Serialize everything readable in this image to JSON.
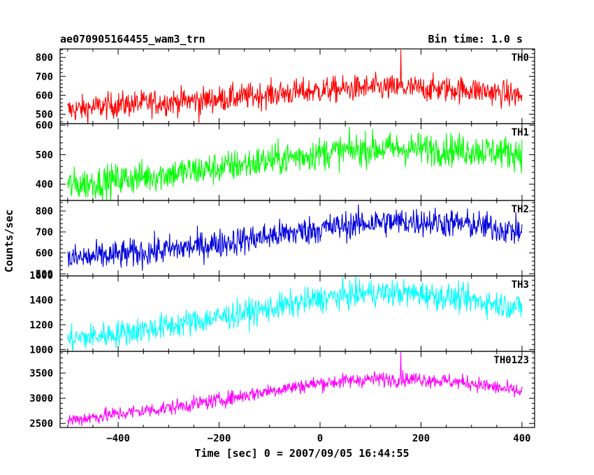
{
  "header": {
    "title": "ae070905164455_wam3_trn",
    "bin_time": "Bin time: 1.0 s"
  },
  "chart_data": {
    "type": "line",
    "title": "ae070905164455_wam3_trn",
    "subtitle": "Bin time: 1.0 s",
    "xlabel": "Time [sec] 0 = 2007/09/05 16:44:55",
    "ylabel": "Counts/sec",
    "xlim": [
      -515,
      425
    ],
    "xticks": [
      -400,
      -200,
      0,
      200,
      400
    ],
    "x_tick_labels": [
      "−400",
      "−200",
      "0",
      "200",
      "400"
    ],
    "data_x_range": [
      -500,
      400
    ],
    "bin_time": 1.0,
    "grid": false,
    "panels": [
      {
        "name": "TH0",
        "color": "#ff0000",
        "ylim": [
          450,
          845
        ],
        "yticks": [
          500,
          600,
          700,
          800
        ],
        "ytick_labels": [
          "500",
          "600",
          "700",
          "800"
        ],
        "trend_x": [
          -500,
          -400,
          -300,
          -200,
          -100,
          0,
          100,
          200,
          300,
          400
        ],
        "trend_y": [
          520,
          550,
          565,
          580,
          605,
          625,
          640,
          635,
          630,
          595
        ],
        "noise": 35,
        "spikes": [
          {
            "x": 160,
            "y": 840
          },
          {
            "x": -240,
            "y": 455
          }
        ]
      },
      {
        "name": "TH1",
        "color": "#00ff00",
        "ylim": [
          345,
          605
        ],
        "yticks": [
          400,
          500,
          600
        ],
        "ytick_labels": [
          "400",
          "500",
          "600"
        ],
        "trend_x": [
          -500,
          -400,
          -300,
          -200,
          -100,
          0,
          100,
          200,
          300,
          400
        ],
        "trend_y": [
          395,
          415,
          435,
          455,
          480,
          505,
          520,
          520,
          515,
          505
        ],
        "noise": 28,
        "spikes": []
      },
      {
        "name": "TH2",
        "color": "#0000dd",
        "ylim": [
          490,
          850
        ],
        "yticks": [
          500,
          600,
          700,
          800
        ],
        "ytick_labels": [
          "500",
          "600",
          "700",
          "800"
        ],
        "trend_x": [
          -500,
          -400,
          -300,
          -200,
          -100,
          0,
          100,
          200,
          300,
          400
        ],
        "trend_y": [
          570,
          590,
          615,
          645,
          680,
          715,
          745,
          750,
          735,
          700
        ],
        "noise": 35,
        "spikes": []
      },
      {
        "name": "TH3",
        "color": "#00ffff",
        "ylim": [
          985,
          1595
        ],
        "yticks": [
          1000,
          1200,
          1400,
          1600
        ],
        "ytick_labels": [
          "1000",
          "1200",
          "1400",
          "1600"
        ],
        "trend_x": [
          -500,
          -400,
          -300,
          -200,
          -100,
          0,
          100,
          200,
          300,
          400
        ],
        "trend_y": [
          1080,
          1130,
          1190,
          1260,
          1330,
          1410,
          1460,
          1450,
          1400,
          1340
        ],
        "noise": 55,
        "spikes": []
      },
      {
        "name": "TH0123",
        "color": "#ff00ff",
        "ylim": [
          2420,
          3930
        ],
        "yticks": [
          2500,
          3000,
          3500
        ],
        "ytick_labels": [
          "2500",
          "3000",
          "3500"
        ],
        "trend_x": [
          -500,
          -400,
          -300,
          -200,
          -100,
          0,
          100,
          200,
          300,
          400
        ],
        "trend_y": [
          2560,
          2690,
          2810,
          2960,
          3150,
          3300,
          3380,
          3380,
          3300,
          3120
        ],
        "noise": 75,
        "spikes": [
          {
            "x": 160,
            "y": 3920
          }
        ]
      }
    ]
  }
}
